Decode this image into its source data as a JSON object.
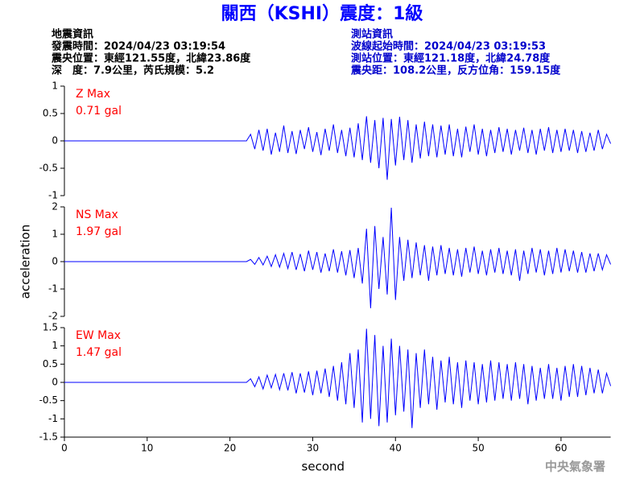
{
  "header": {
    "title": "關西（KSHI）震度：1級",
    "left": [
      "地震資訊",
      "發震時間：2024/04/23 03:19:54",
      "震央位置：東經121.55度，北緯23.86度",
      "深　度：7.9公里，芮氏規模：5.2"
    ],
    "right": [
      "測站資訊",
      "波線起始時間：2024/04/23 03:19:53",
      "測站位置：東經121.18度，北緯24.78度",
      "震央距：108.2公里，反方位角：159.15度"
    ],
    "footer": "中央氣象署"
  },
  "chart_data": [
    {
      "type": "line",
      "label": "Z Max",
      "max_label": "0.71 gal",
      "color": "#0000ff",
      "label_color": "#ff0000",
      "xlim": [
        0,
        66
      ],
      "ylim": [
        -1,
        1
      ],
      "yticks": [
        -1,
        -0.5,
        0,
        0.5,
        1
      ],
      "x": [
        0,
        22,
        22.5,
        23,
        23.5,
        24,
        24.5,
        25,
        25.5,
        26,
        26.5,
        27,
        27.5,
        28,
        28.5,
        29,
        29.5,
        30,
        30.5,
        31,
        31.5,
        32,
        32.5,
        33,
        33.5,
        34,
        34.5,
        35,
        35.5,
        36,
        36.5,
        37,
        37.5,
        38,
        38.5,
        39,
        39.5,
        40,
        40.5,
        41,
        41.5,
        42,
        42.5,
        43,
        43.5,
        44,
        44.5,
        45,
        45.5,
        46,
        46.5,
        47,
        47.5,
        48,
        48.5,
        49,
        49.5,
        50,
        50.5,
        51,
        51.5,
        52,
        52.5,
        53,
        53.5,
        54,
        54.5,
        55,
        55.5,
        56,
        56.5,
        57,
        57.5,
        58,
        58.5,
        59,
        59.5,
        60,
        60.5,
        61,
        61.5,
        62,
        62.5,
        63,
        63.5,
        64,
        64.5,
        65,
        65.5,
        66
      ],
      "values": [
        0,
        0,
        0.12,
        -0.15,
        0.2,
        -0.18,
        0.22,
        -0.25,
        0.15,
        -0.2,
        0.28,
        -0.22,
        0.18,
        -0.24,
        0.2,
        -0.15,
        0.25,
        -0.2,
        0.16,
        -0.26,
        0.22,
        -0.18,
        0.3,
        -0.22,
        0.2,
        -0.28,
        0.24,
        -0.3,
        0.32,
        -0.35,
        0.45,
        -0.4,
        0.38,
        -0.5,
        0.42,
        -0.71,
        0.4,
        -0.45,
        0.44,
        -0.35,
        0.38,
        -0.4,
        0.3,
        -0.32,
        0.35,
        -0.28,
        0.3,
        -0.3,
        0.28,
        -0.25,
        0.3,
        -0.28,
        0.22,
        -0.3,
        0.26,
        -0.2,
        0.3,
        -0.25,
        0.22,
        -0.28,
        0.2,
        -0.22,
        0.25,
        -0.2,
        0.22,
        -0.25,
        0.2,
        -0.18,
        0.24,
        -0.22,
        0.2,
        -0.25,
        0.22,
        -0.18,
        0.25,
        -0.22,
        0.2,
        -0.2,
        0.22,
        -0.18,
        0.2,
        -0.22,
        0.18,
        -0.2,
        0.15,
        -0.18,
        0.2,
        -0.15,
        0.12,
        -0.05
      ]
    },
    {
      "type": "line",
      "label": "NS Max",
      "max_label": "1.97 gal",
      "color": "#0000ff",
      "label_color": "#ff0000",
      "ylabel": "acceleration",
      "xlim": [
        0,
        66
      ],
      "ylim": [
        -2,
        2
      ],
      "yticks": [
        -2,
        -1,
        0,
        1,
        2
      ],
      "x": [
        0,
        22,
        22.5,
        23,
        23.5,
        24,
        24.5,
        25,
        25.5,
        26,
        26.5,
        27,
        27.5,
        28,
        28.5,
        29,
        29.5,
        30,
        30.5,
        31,
        31.5,
        32,
        32.5,
        33,
        33.5,
        34,
        34.5,
        35,
        35.5,
        36,
        36.5,
        37,
        37.5,
        38,
        38.5,
        39,
        39.5,
        40,
        40.5,
        41,
        41.5,
        42,
        42.5,
        43,
        43.5,
        44,
        44.5,
        45,
        45.5,
        46,
        46.5,
        47,
        47.5,
        48,
        48.5,
        49,
        49.5,
        50,
        50.5,
        51,
        51.5,
        52,
        52.5,
        53,
        53.5,
        54,
        54.5,
        55,
        55.5,
        56,
        56.5,
        57,
        57.5,
        58,
        58.5,
        59,
        59.5,
        60,
        60.5,
        61,
        61.5,
        62,
        62.5,
        63,
        63.5,
        64,
        64.5,
        65,
        65.5,
        66
      ],
      "values": [
        0,
        0,
        0.08,
        -0.1,
        0.15,
        -0.12,
        0.2,
        -0.18,
        0.25,
        -0.2,
        0.3,
        -0.25,
        0.35,
        -0.3,
        0.28,
        -0.35,
        0.4,
        -0.3,
        0.35,
        -0.4,
        0.3,
        -0.35,
        0.45,
        -0.4,
        0.38,
        -0.5,
        0.42,
        -0.6,
        0.5,
        -0.8,
        1.2,
        -1.7,
        1.3,
        -1.0,
        0.9,
        -1.2,
        1.97,
        -1.4,
        0.9,
        -0.7,
        0.8,
        -0.6,
        0.7,
        -0.5,
        0.6,
        -0.7,
        0.55,
        -0.5,
        0.6,
        -0.45,
        0.5,
        -0.5,
        0.45,
        -0.55,
        0.5,
        -0.4,
        0.55,
        -0.45,
        0.4,
        -0.5,
        0.45,
        -0.4,
        0.5,
        -0.45,
        0.4,
        -0.5,
        0.45,
        -0.7,
        0.4,
        -0.45,
        0.5,
        -0.4,
        0.45,
        -0.5,
        0.4,
        -0.45,
        0.5,
        -0.4,
        0.45,
        -0.35,
        0.4,
        -0.4,
        0.35,
        -0.4,
        0.3,
        -0.35,
        0.3,
        -0.3,
        0.25,
        -0.1
      ]
    },
    {
      "type": "line",
      "label": "EW Max",
      "max_label": "1.47 gal",
      "color": "#0000ff",
      "label_color": "#ff0000",
      "xlabel": "second",
      "xlim": [
        0,
        66
      ],
      "xticks": [
        0,
        10,
        20,
        30,
        40,
        50,
        60
      ],
      "ylim": [
        -1.5,
        1.5
      ],
      "yticks": [
        -1.5,
        -1,
        -0.5,
        0,
        0.5,
        1,
        1.5
      ],
      "x": [
        0,
        22,
        22.5,
        23,
        23.5,
        24,
        24.5,
        25,
        25.5,
        26,
        26.5,
        27,
        27.5,
        28,
        28.5,
        29,
        29.5,
        30,
        30.5,
        31,
        31.5,
        32,
        32.5,
        33,
        33.5,
        34,
        34.5,
        35,
        35.5,
        36,
        36.5,
        37,
        37.5,
        38,
        38.5,
        39,
        39.5,
        40,
        40.5,
        41,
        41.5,
        42,
        42.5,
        43,
        43.5,
        44,
        44.5,
        45,
        45.5,
        46,
        46.5,
        47,
        47.5,
        48,
        48.5,
        49,
        49.5,
        50,
        50.5,
        51,
        51.5,
        52,
        52.5,
        53,
        53.5,
        54,
        54.5,
        55,
        55.5,
        56,
        56.5,
        57,
        57.5,
        58,
        58.5,
        59,
        59.5,
        60,
        60.5,
        61,
        61.5,
        62,
        62.5,
        63,
        63.5,
        64,
        64.5,
        65,
        65.5,
        66
      ],
      "values": [
        0,
        0,
        0.1,
        -0.12,
        0.15,
        -0.18,
        0.2,
        -0.15,
        0.22,
        -0.2,
        0.25,
        -0.22,
        0.28,
        -0.3,
        0.25,
        -0.28,
        0.3,
        -0.35,
        0.32,
        -0.3,
        0.38,
        -0.4,
        0.45,
        -0.5,
        0.55,
        -0.6,
        0.8,
        -0.7,
        0.9,
        -1.1,
        1.47,
        -1.0,
        1.3,
        -1.2,
        1.0,
        -1.1,
        1.2,
        -0.9,
        1.0,
        -0.8,
        0.9,
        -1.25,
        0.8,
        -0.7,
        0.9,
        -0.6,
        0.7,
        -0.75,
        0.6,
        -0.55,
        0.7,
        -0.6,
        0.55,
        -0.7,
        0.6,
        -0.5,
        0.55,
        -0.6,
        0.5,
        -0.55,
        0.6,
        -0.5,
        0.55,
        -0.45,
        0.5,
        -0.5,
        0.55,
        -0.45,
        0.5,
        -0.6,
        0.45,
        -0.5,
        0.4,
        -0.45,
        0.5,
        -0.45,
        0.4,
        -0.5,
        0.45,
        -0.4,
        0.5,
        -0.4,
        0.45,
        -0.35,
        0.4,
        -0.3,
        0.35,
        -0.3,
        0.25,
        -0.1
      ]
    }
  ]
}
